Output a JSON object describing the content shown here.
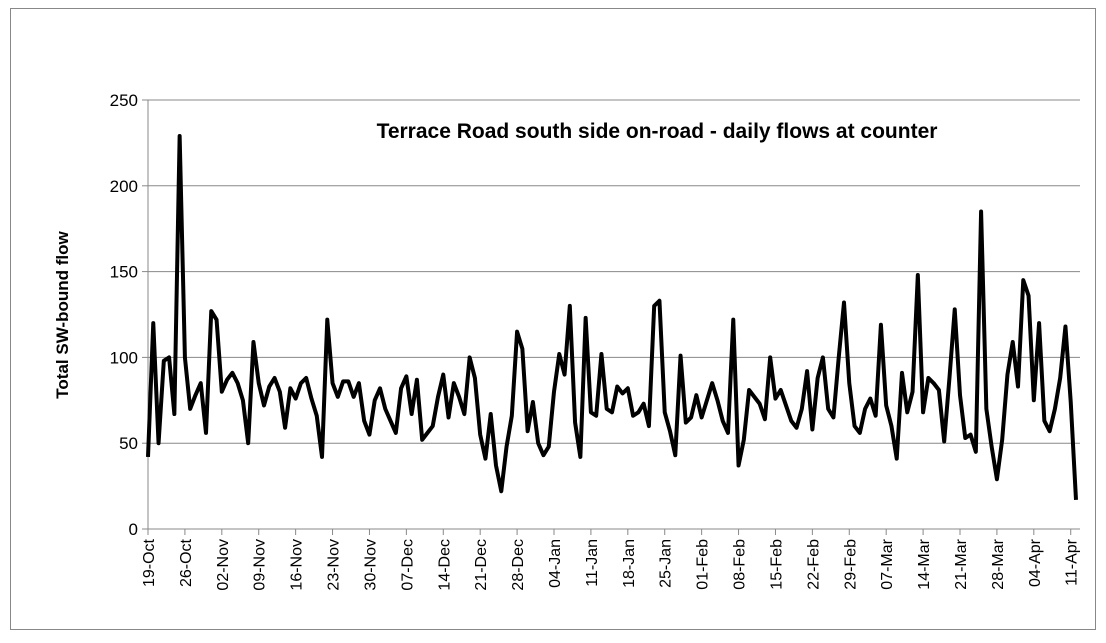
{
  "chart_data": {
    "type": "line",
    "title": "Terrace Road south side on-road - daily flows at counter",
    "y_label": "Total SW-bound flow",
    "ylim": [
      0,
      250
    ],
    "yticks": [
      0,
      50,
      100,
      150,
      200,
      250
    ],
    "grid": true,
    "categories": [
      "19-Oct",
      null,
      null,
      null,
      null,
      null,
      null,
      "26-Oct",
      null,
      null,
      null,
      null,
      null,
      null,
      "02-Nov",
      null,
      null,
      null,
      null,
      null,
      null,
      "09-Nov",
      null,
      null,
      null,
      null,
      null,
      null,
      "16-Nov",
      null,
      null,
      null,
      null,
      null,
      null,
      "23-Nov",
      null,
      null,
      null,
      null,
      null,
      null,
      "30-Nov",
      null,
      null,
      null,
      null,
      null,
      null,
      "07-Dec",
      null,
      null,
      null,
      null,
      null,
      null,
      "14-Dec",
      null,
      null,
      null,
      null,
      null,
      null,
      "21-Dec",
      null,
      null,
      null,
      null,
      null,
      null,
      "28-Dec",
      null,
      null,
      null,
      null,
      null,
      null,
      "04-Jan",
      null,
      null,
      null,
      null,
      null,
      null,
      "11-Jan",
      null,
      null,
      null,
      null,
      null,
      null,
      "18-Jan",
      null,
      null,
      null,
      null,
      null,
      null,
      "25-Jan",
      null,
      null,
      null,
      null,
      null,
      null,
      "01-Feb",
      null,
      null,
      null,
      null,
      null,
      null,
      "08-Feb",
      null,
      null,
      null,
      null,
      null,
      null,
      "15-Feb",
      null,
      null,
      null,
      null,
      null,
      null,
      "22-Feb",
      null,
      null,
      null,
      null,
      null,
      null,
      "29-Feb",
      null,
      null,
      null,
      null,
      null,
      null,
      "07-Mar",
      null,
      null,
      null,
      null,
      null,
      null,
      "14-Mar",
      null,
      null,
      null,
      null,
      null,
      null,
      "21-Mar",
      null,
      null,
      null,
      null,
      null,
      null,
      "28-Mar",
      null,
      null,
      null,
      null,
      null,
      null,
      "04-Apr",
      null,
      null,
      null,
      null,
      null,
      null,
      "11-Apr",
      null
    ],
    "series": [
      {
        "name": "Total SW-bound flow",
        "color": "#000000",
        "values": [
          42,
          120,
          50,
          98,
          100,
          67,
          229,
          100,
          70,
          78,
          85,
          56,
          127,
          122,
          80,
          87,
          91,
          85,
          75,
          50,
          109,
          85,
          72,
          83,
          88,
          80,
          59,
          82,
          76,
          85,
          88,
          76,
          66,
          42,
          122,
          85,
          77,
          86,
          86,
          77,
          85,
          63,
          55,
          75,
          82,
          70,
          63,
          56,
          82,
          89,
          67,
          87,
          52,
          56,
          60,
          77,
          90,
          65,
          85,
          77,
          67,
          100,
          88,
          55,
          41,
          67,
          37,
          22,
          48,
          66,
          115,
          105,
          57,
          74,
          50,
          43,
          48,
          80,
          102,
          90,
          130,
          62,
          42,
          123,
          68,
          66,
          102,
          70,
          68,
          83,
          79,
          82,
          66,
          68,
          73,
          60,
          130,
          133,
          68,
          57,
          43,
          101,
          62,
          65,
          78,
          65,
          75,
          85,
          75,
          63,
          56,
          122,
          37,
          52,
          81,
          77,
          73,
          64,
          100,
          76,
          81,
          72,
          63,
          59,
          70,
          92,
          58,
          88,
          100,
          70,
          65,
          100,
          132,
          85,
          60,
          56,
          70,
          76,
          66,
          119,
          72,
          60,
          41,
          91,
          68,
          80,
          148,
          68,
          88,
          85,
          81,
          51,
          88,
          128,
          78,
          53,
          55,
          45,
          185,
          70,
          48,
          29,
          52,
          90,
          109,
          83,
          145,
          136,
          75,
          120,
          63,
          57,
          70,
          88,
          118,
          74,
          17
        ]
      }
    ]
  }
}
